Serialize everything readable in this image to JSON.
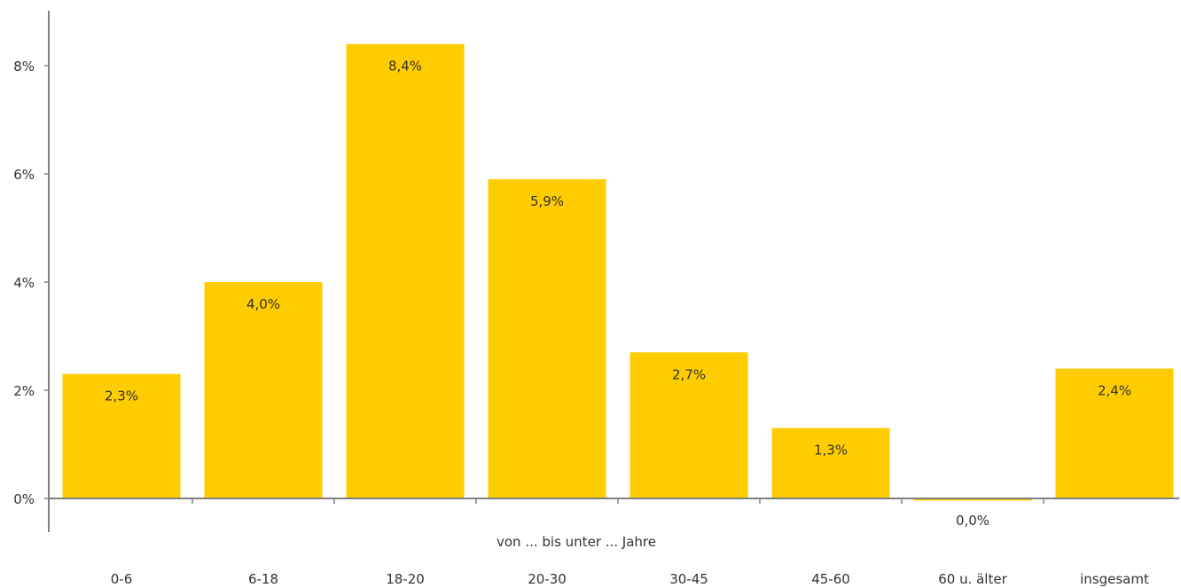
{
  "chart_data": {
    "type": "bar",
    "categories": [
      "0-6",
      "6-18",
      "18-20",
      "20-30",
      "30-45",
      "45-60",
      "60 u. älter",
      "insgesamt"
    ],
    "values": [
      2.3,
      4.0,
      8.4,
      5.9,
      2.7,
      1.3,
      -0.04,
      2.4
    ],
    "data_labels": [
      "2,3%",
      "4,0%",
      "8,4%",
      "5,9%",
      "2,7%",
      "1,3%",
      "0,0%",
      "2,4%"
    ],
    "xlabel": "von ... bis unter ... Jahre",
    "ylabel": "",
    "ylim": [
      0,
      8.6
    ],
    "yticks": [
      0,
      2,
      4,
      6,
      8
    ],
    "ytick_labels": [
      "0%",
      "2%",
      "4%",
      "6%",
      "8%"
    ],
    "bar_color": "#FFCC00",
    "axis_color": "#808080",
    "grid": false,
    "legend": "none"
  }
}
